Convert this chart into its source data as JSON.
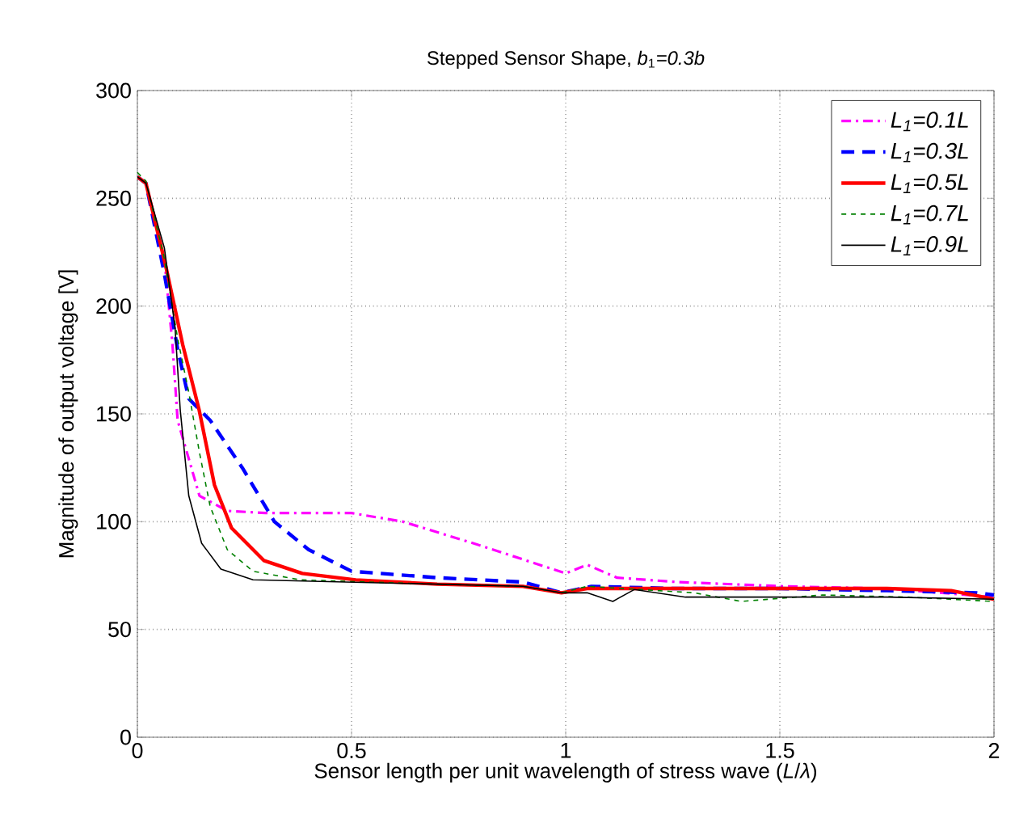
{
  "chart_data": {
    "type": "line",
    "title": "Stepped Sensor Shape, *b*$_{1}$*=0.3b*",
    "xlabel": "Sensor length per unit wavelength of stress wave (*L*/*λ*)",
    "ylabel": "Magnitude of output voltage [V]",
    "xlim": [
      0,
      2
    ],
    "ylim": [
      0,
      300
    ],
    "xticks": [
      0,
      0.5,
      1,
      1.5,
      2
    ],
    "yticks": [
      0,
      50,
      100,
      150,
      200,
      250,
      300
    ],
    "grid": true,
    "legend": "top right",
    "marker": "none",
    "series": [
      {
        "name": "L$_{1}$=0.1L",
        "color": "#ff00ff",
        "line_style": "dashdot",
        "x": [
          0,
          0.02,
          0.063,
          0.082,
          0.094,
          0.145,
          0.21,
          0.3,
          0.5,
          0.62,
          0.8,
          1.0,
          1.05,
          1.12,
          1.26,
          1.51,
          1.75,
          2.0
        ],
        "values": [
          260,
          257,
          222,
          182,
          147,
          112,
          105,
          104,
          104,
          100,
          89,
          76,
          80,
          74,
          72,
          70,
          69,
          65
        ]
      },
      {
        "name": "L$_{1}$=0.3L",
        "color": "#0000ff",
        "line_style": "dashed",
        "x": [
          0,
          0.02,
          0.063,
          0.094,
          0.12,
          0.17,
          0.245,
          0.32,
          0.4,
          0.5,
          0.7,
          0.9,
          0.99,
          1.06,
          1.25,
          1.5,
          1.75,
          1.96,
          2.0
        ],
        "values": [
          260,
          257,
          215,
          180,
          157,
          147,
          125,
          100,
          87,
          77,
          74,
          72,
          67,
          70,
          69,
          69,
          68,
          67,
          66
        ]
      },
      {
        "name": "L$_{1}$=0.5L",
        "color": "#ff0000",
        "line_style": "solid",
        "x": [
          0,
          0.02,
          0.068,
          0.106,
          0.144,
          0.18,
          0.22,
          0.295,
          0.385,
          0.51,
          0.7,
          0.9,
          0.99,
          1.05,
          1.25,
          1.5,
          1.75,
          1.9,
          2.0
        ],
        "values": [
          260,
          257,
          217,
          182,
          152,
          117,
          97,
          82,
          76,
          73,
          71,
          70,
          67,
          69,
          69,
          69,
          69,
          68,
          64
        ]
      },
      {
        "name": "L$_{1}$=0.7L",
        "color": "#008000",
        "line_style": "dashed",
        "x": [
          0,
          0.02,
          0.063,
          0.094,
          0.12,
          0.145,
          0.17,
          0.21,
          0.27,
          0.38,
          0.7,
          0.9,
          0.99,
          1.05,
          1.3,
          1.41,
          1.6,
          1.8,
          2.0
        ],
        "values": [
          262,
          258,
          222,
          185,
          160,
          132,
          107,
          87,
          77,
          73,
          71,
          70,
          67,
          70,
          67,
          63,
          66,
          65,
          63
        ]
      },
      {
        "name": "L$_{1}$=0.9L",
        "color": "#000000",
        "line_style": "solid",
        "x": [
          0,
          0.02,
          0.063,
          0.088,
          0.1,
          0.12,
          0.15,
          0.195,
          0.27,
          0.7,
          0.9,
          0.99,
          1.05,
          1.11,
          1.16,
          1.28,
          1.51,
          1.75,
          2.0
        ],
        "values": [
          260,
          257,
          227,
          190,
          152,
          112,
          90,
          78,
          73,
          71,
          70,
          67,
          67,
          63,
          68.5,
          65,
          65,
          65,
          64
        ]
      }
    ]
  }
}
